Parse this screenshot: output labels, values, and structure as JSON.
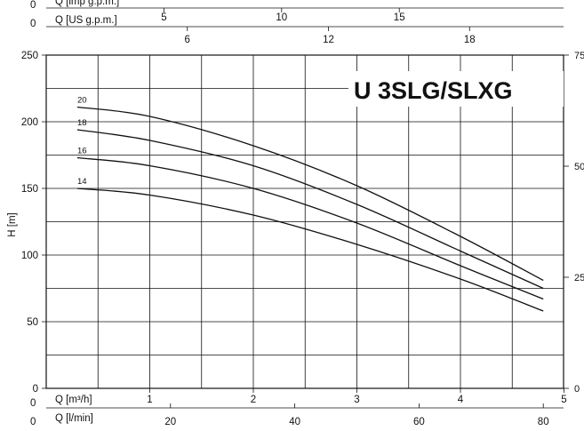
{
  "chart_data": {
    "type": "line",
    "title": "U 3SLG/SLXG",
    "ylabel": "H [m]",
    "ylim": [
      0,
      250
    ],
    "yticks": [
      "0",
      "50",
      "100",
      "150",
      "200",
      "250"
    ],
    "right_ticks": [
      {
        "value": 0,
        "label": "0"
      },
      {
        "value": 25,
        "label": "25"
      },
      {
        "value": 50,
        "label": "50"
      },
      {
        "value": 75,
        "label": "75"
      }
    ],
    "xlim": [
      0,
      5
    ],
    "x_axes": [
      {
        "id": "imp",
        "label": "Q [imp g.p.m.]",
        "zero_label": "0",
        "ticks": [
          {
            "q": 1.1365,
            "label": "5"
          },
          {
            "q": 2.273,
            "label": "10"
          },
          {
            "q": 3.4095,
            "label": "15"
          }
        ]
      },
      {
        "id": "us",
        "label": "Q [US g.p.m.]",
        "zero_label": "0",
        "ticks": [
          {
            "q": 1.3627,
            "label": "6"
          },
          {
            "q": 2.7254,
            "label": "12"
          },
          {
            "q": 4.0881,
            "label": "18"
          }
        ]
      },
      {
        "id": "m3h",
        "label": "Q [m³/h]",
        "zero_label": "0",
        "ticks": [
          {
            "q": 1,
            "label": "1"
          },
          {
            "q": 2,
            "label": "2"
          },
          {
            "q": 3,
            "label": "3"
          },
          {
            "q": 4,
            "label": "4"
          },
          {
            "q": 5,
            "label": "5"
          }
        ]
      },
      {
        "id": "lmin",
        "label": "Q [l/min]",
        "zero_label": "0",
        "ticks": [
          {
            "q": 1.2,
            "label": "20"
          },
          {
            "q": 2.4,
            "label": "40"
          },
          {
            "q": 3.6,
            "label": "60"
          },
          {
            "q": 4.8,
            "label": "80"
          }
        ]
      }
    ],
    "series": [
      {
        "name": "20",
        "x": [
          0.3,
          1,
          2,
          3,
          4,
          4.8
        ],
        "y": [
          211,
          204,
          182,
          152,
          114,
          81
        ]
      },
      {
        "name": "18",
        "x": [
          0.3,
          1,
          2,
          3,
          4,
          4.8
        ],
        "y": [
          194,
          186,
          167,
          138,
          103,
          75
        ]
      },
      {
        "name": "16",
        "x": [
          0.3,
          1,
          2,
          3,
          4,
          4.8
        ],
        "y": [
          173,
          167,
          150,
          124,
          92,
          67
        ]
      },
      {
        "name": "14",
        "x": [
          0.3,
          1,
          2,
          3,
          4,
          4.8
        ],
        "y": [
          150,
          145,
          130,
          108,
          82,
          58
        ]
      }
    ]
  }
}
